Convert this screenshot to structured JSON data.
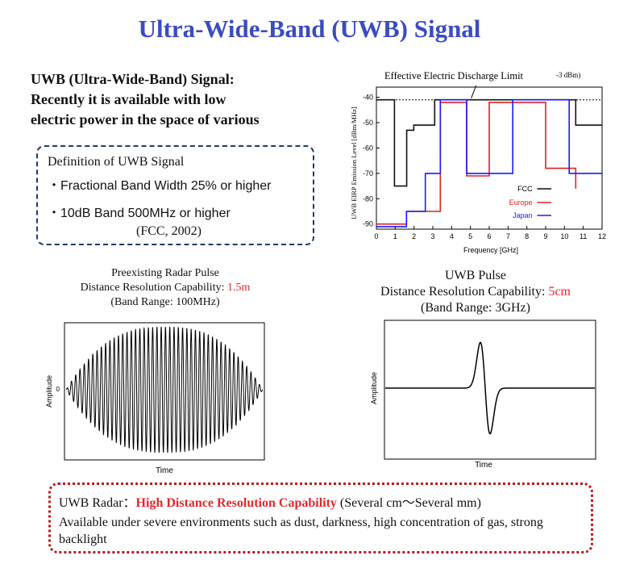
{
  "title": "Ultra-Wide-Band (UWB) Signal",
  "intro": {
    "line1": "UWB (Ultra-Wide-Band) Signal:",
    "line2": "Recently it is available with low",
    "line3": "electric power in the space of various"
  },
  "definition": {
    "heading": "Definition of UWB Signal",
    "item1": "・Fractional Band Width 25% or higher",
    "item2": "・10dB Band 500MHz or higher",
    "citation": "(FCC, 2002)"
  },
  "emission_chart": {
    "top_label": "Effective Electric Discharge Limit",
    "limit_label": "-3 dBm)",
    "ylabel": "UWB EIRP Emission Level [dBm/MHz]",
    "xlabel": "Frequency [GHz]",
    "y_ticks": [
      "-40",
      "-50",
      "-60",
      "-70",
      "-80",
      "-90"
    ],
    "x_ticks": [
      "0",
      "1",
      "2",
      "3",
      "4",
      "5",
      "6",
      "7",
      "8",
      "9",
      "10",
      "11",
      "12"
    ],
    "legend": [
      "FCC",
      "Europe",
      "Japan"
    ],
    "colors": {
      "FCC": "#111111",
      "Europe": "#e02020",
      "Japan": "#1a1aff"
    }
  },
  "chart_data": {
    "type": "line",
    "xlim": [
      0,
      12
    ],
    "ylim": [
      -92,
      -36
    ],
    "limit_line": -41,
    "series": [
      {
        "name": "FCC",
        "points": [
          [
            0,
            -41
          ],
          [
            0.96,
            -41
          ],
          [
            0.96,
            -75
          ],
          [
            1.61,
            -75
          ],
          [
            1.61,
            -53
          ],
          [
            1.99,
            -53
          ],
          [
            1.99,
            -51
          ],
          [
            3.1,
            -51
          ],
          [
            3.1,
            -41
          ],
          [
            10.6,
            -41
          ],
          [
            10.6,
            -51
          ],
          [
            12,
            -51
          ]
        ]
      },
      {
        "name": "Europe",
        "points": [
          [
            0,
            -90
          ],
          [
            1.6,
            -90
          ],
          [
            1.6,
            -85
          ],
          [
            3.4,
            -85
          ],
          [
            3.4,
            -42
          ],
          [
            4.8,
            -42
          ],
          [
            4.8,
            -71
          ],
          [
            6,
            -71
          ],
          [
            6,
            -42
          ],
          [
            8.5,
            -42
          ],
          [
            8.5,
            -42
          ],
          [
            9,
            -42
          ],
          [
            9,
            -68
          ],
          [
            10.6,
            -68
          ],
          [
            10.6,
            -76
          ]
        ]
      },
      {
        "name": "Japan",
        "points": [
          [
            0,
            -91
          ],
          [
            1.6,
            -91
          ],
          [
            1.6,
            -85
          ],
          [
            2.6,
            -85
          ],
          [
            2.6,
            -70
          ],
          [
            3.4,
            -70
          ],
          [
            3.4,
            -41
          ],
          [
            4.8,
            -41
          ],
          [
            4.8,
            -70
          ],
          [
            7.25,
            -70
          ],
          [
            7.25,
            -41
          ],
          [
            10.25,
            -41
          ],
          [
            10.25,
            -70
          ],
          [
            12,
            -70
          ]
        ]
      }
    ]
  },
  "radar_pulse": {
    "title": "Preexisting Radar Pulse",
    "resolution_prefix": "Distance Resolution Capability: ",
    "resolution_value": "1.5m",
    "band": "(Band Range: 100MHz)",
    "ylabel": "Amplitude",
    "xlabel": "Time",
    "y_zero": "0"
  },
  "uwb_pulse": {
    "title": "UWB Pulse",
    "resolution_prefix": "Distance Resolution Capability: ",
    "resolution_value": "5cm",
    "band": "(Band Range: 3GHz)",
    "ylabel": "Amplitude",
    "xlabel": "Time"
  },
  "bottom": {
    "prefix": "UWB Radar：",
    "highlight": "High Distance Resolution Capability",
    "suffix": " (Several cm～Several mm)",
    "line2": "Available under severe environments such as dust, darkness, high concentration of gas, strong backlight"
  }
}
